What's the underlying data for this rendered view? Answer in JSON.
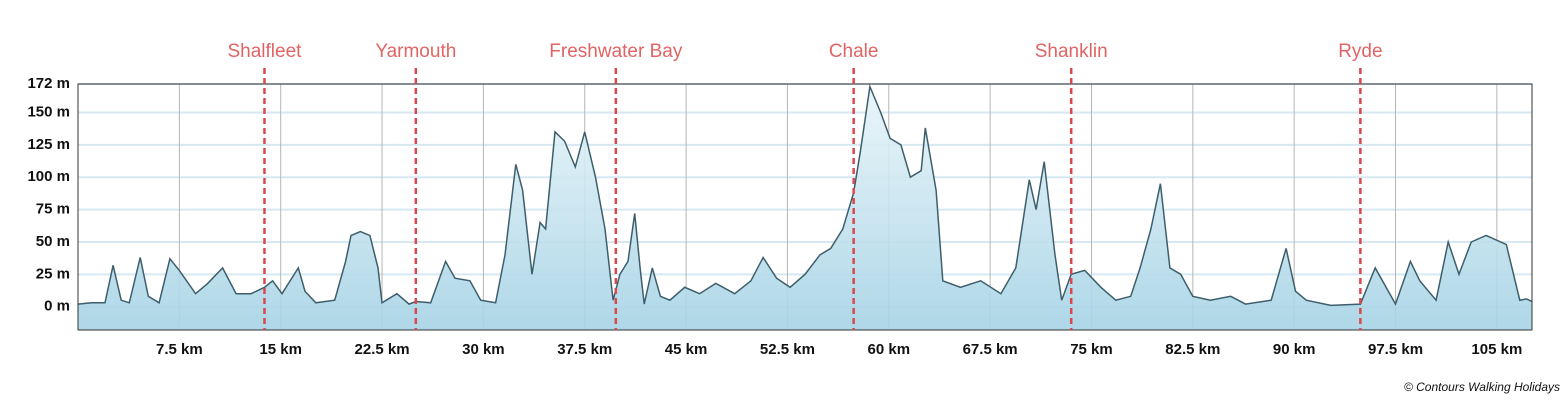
{
  "chart_data": {
    "type": "area",
    "x": [
      0,
      1,
      2,
      2.6,
      3.2,
      3.8,
      4.6,
      5.2,
      6,
      6.8,
      7.5,
      8.7,
      9.6,
      10.7,
      11.7,
      12.8,
      13.8,
      14.4,
      15.1,
      16.3,
      16.8,
      17.6,
      19.0,
      19.8,
      20.2,
      20.9,
      21.6,
      22.2,
      22.5,
      23.6,
      24.5,
      25.0,
      26.1,
      27.2,
      27.9,
      29.0,
      29.8,
      30.9,
      31.6,
      32.4,
      32.9,
      33.6,
      34.2,
      34.6,
      35.3,
      36.0,
      36.8,
      37.5,
      38.3,
      39.0,
      39.6,
      40.1,
      40.7,
      41.2,
      41.6,
      41.9,
      42.5,
      43.1,
      43.8,
      44.9,
      46.0,
      47.2,
      48.6,
      49.8,
      50.7,
      51.7,
      52.7,
      53.8,
      54.9,
      55.7,
      56.6,
      57.4,
      57.9,
      58.6,
      59.4,
      60.1,
      60.9,
      61.6,
      62.4,
      62.7,
      63.5,
      64.0,
      65.3,
      66.8,
      68.3,
      69.4,
      70.4,
      70.9,
      71.5,
      72.3,
      72.8,
      73.5,
      74.5,
      75.7,
      76.8,
      77.9,
      78.6,
      79.4,
      80.1,
      80.8,
      81.6,
      82.5,
      83.8,
      85.3,
      86.4,
      88.3,
      89.4,
      90.1,
      90.9,
      92.7,
      94.9,
      96.0,
      96.8,
      97.5,
      98.6,
      99.3,
      100.5,
      101.4,
      102.2,
      103.1,
      104.2,
      105.7,
      106.7,
      107.2,
      107.6
    ],
    "values": [
      2,
      3,
      3,
      32,
      5,
      3,
      38,
      8,
      3,
      37,
      28,
      10,
      18,
      30,
      10,
      10,
      15,
      20,
      10,
      30,
      12,
      3,
      5,
      35,
      55,
      58,
      55,
      30,
      3,
      10,
      2,
      4,
      3,
      35,
      22,
      20,
      5,
      3,
      40,
      110,
      90,
      25,
      65,
      60,
      135,
      128,
      108,
      135,
      100,
      60,
      5,
      25,
      35,
      72,
      30,
      2,
      30,
      8,
      5,
      15,
      10,
      18,
      10,
      20,
      38,
      22,
      15,
      25,
      40,
      45,
      60,
      88,
      120,
      170,
      150,
      130,
      125,
      100,
      105,
      138,
      90,
      20,
      15,
      20,
      10,
      30,
      98,
      75,
      112,
      40,
      5,
      25,
      28,
      15,
      5,
      8,
      30,
      60,
      95,
      30,
      25,
      8,
      5,
      8,
      2,
      5,
      45,
      12,
      5,
      1,
      2,
      30,
      15,
      2,
      35,
      20,
      5,
      50,
      25,
      50,
      55,
      48,
      5,
      6,
      4
    ],
    "color": "#3d5e6b",
    "xlim": [
      0,
      107.6
    ],
    "ylim": [
      -18,
      172
    ],
    "xticks": [
      {
        "value": 7.5,
        "label": "7.5 km"
      },
      {
        "value": 15,
        "label": "15 km"
      },
      {
        "value": 22.5,
        "label": "22.5 km"
      },
      {
        "value": 30,
        "label": "30 km"
      },
      {
        "value": 37.5,
        "label": "37.5 km"
      },
      {
        "value": 45,
        "label": "45 km"
      },
      {
        "value": 52.5,
        "label": "52.5 km"
      },
      {
        "value": 60,
        "label": "60 km"
      },
      {
        "value": 67.5,
        "label": "67.5 km"
      },
      {
        "value": 75,
        "label": "75 km"
      },
      {
        "value": 82.5,
        "label": "82.5 km"
      },
      {
        "value": 90,
        "label": "90 km"
      },
      {
        "value": 97.5,
        "label": "97.5 km"
      },
      {
        "value": 105,
        "label": "105 km"
      }
    ],
    "yticks": [
      {
        "value": 0,
        "label": "0 m"
      },
      {
        "value": 25,
        "label": "25 m"
      },
      {
        "value": 50,
        "label": "50 m"
      },
      {
        "value": 75,
        "label": "75 m"
      },
      {
        "value": 100,
        "label": "100 m"
      },
      {
        "value": 125,
        "label": "125 m"
      },
      {
        "value": 150,
        "label": "150 m"
      },
      {
        "value": 172,
        "label": "172 m"
      }
    ],
    "grid": true,
    "annotations": [
      {
        "label": "Shalfleet",
        "x": 13.8
      },
      {
        "label": "Yarmouth",
        "x": 25.0
      },
      {
        "label": "Freshwater Bay",
        "x": 39.8
      },
      {
        "label": "Chale",
        "x": 57.4
      },
      {
        "label": "Shanklin",
        "x": 73.5
      },
      {
        "label": "Ryde",
        "x": 94.9
      }
    ],
    "source": "© Contours Walking Holidays"
  }
}
